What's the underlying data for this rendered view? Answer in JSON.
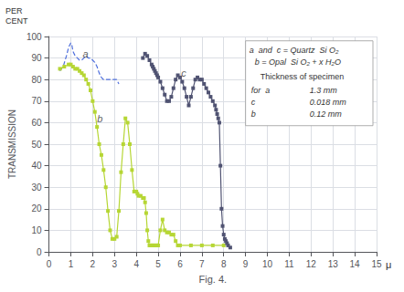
{
  "chart_data": {
    "type": "line",
    "xlabel": "Fig. 4.",
    "ylabel": "TRANSMISSION",
    "ylabel_top": "PER\nCENT",
    "x_unit": "μ",
    "xlim": [
      0,
      15
    ],
    "ylim": [
      0,
      100
    ],
    "xticks": [
      0,
      1,
      2,
      3,
      4,
      5,
      6,
      7,
      8,
      9,
      10,
      11,
      12,
      13,
      14,
      15
    ],
    "yticks": [
      0,
      10,
      20,
      30,
      40,
      50,
      60,
      70,
      80,
      90,
      100
    ],
    "grid": true,
    "series": [
      {
        "line_style": "dashed",
        "marker": "none",
        "x": [
          0.5,
          0.65,
          0.8,
          0.9,
          1.0,
          1.05,
          1.1,
          1.2,
          1.3,
          1.4,
          1.5,
          1.6,
          1.7,
          1.8,
          1.9,
          2.0,
          2.1,
          2.2,
          2.3,
          2.4,
          2.5,
          2.6,
          2.7,
          2.8,
          2.9,
          3.0,
          3.1,
          3.2
        ],
        "values": [
          84,
          86,
          91,
          95,
          97,
          96,
          93,
          91,
          90,
          89,
          89,
          90,
          91,
          90,
          90,
          89,
          88,
          86,
          83,
          81,
          80,
          80,
          80,
          80,
          80,
          80,
          80,
          78
        ]
      },
      {
        "line_style": "solid",
        "marker": "square",
        "x": [
          0.5,
          0.7,
          0.9,
          1.0,
          1.1,
          1.2,
          1.3,
          1.4,
          1.5,
          1.6,
          1.7,
          1.8,
          1.9,
          2.0,
          2.1,
          2.2,
          2.3,
          2.4,
          2.5,
          2.6,
          2.7,
          2.8,
          2.9,
          3.0,
          3.1,
          3.2,
          3.3,
          3.4,
          3.5,
          3.6,
          3.7,
          3.8,
          3.9,
          4.0,
          4.05,
          4.1,
          4.2,
          4.3,
          4.35,
          4.4,
          4.45,
          4.5,
          4.55,
          4.6,
          4.65,
          4.7,
          4.75,
          4.8,
          4.85,
          4.9,
          4.95,
          5.0,
          5.1,
          5.2,
          5.3,
          5.4,
          5.5,
          5.6,
          5.7,
          5.8,
          5.9,
          6.0,
          6.5,
          7.0,
          7.5,
          8.0
        ],
        "values": [
          85,
          86,
          87,
          87,
          86,
          85,
          85,
          84,
          83,
          82,
          80,
          78,
          75,
          70,
          65,
          58,
          50,
          45,
          38,
          30,
          19,
          10,
          6,
          6,
          7,
          19,
          37,
          50,
          62,
          60,
          50,
          38,
          28,
          28,
          27,
          26,
          26,
          25,
          25,
          23,
          18,
          10,
          5,
          3,
          3,
          3,
          3,
          3,
          3,
          3,
          3,
          3,
          10,
          15,
          10,
          9,
          9,
          8,
          8,
          5,
          3,
          3,
          3,
          3,
          3,
          3
        ]
      },
      {
        "line_style": "solid",
        "marker": "square",
        "x": [
          4.3,
          4.4,
          4.5,
          4.6,
          4.7,
          4.75,
          4.8,
          4.85,
          4.9,
          4.95,
          5.0,
          5.1,
          5.2,
          5.3,
          5.4,
          5.5,
          5.6,
          5.7,
          5.8,
          5.9,
          6.0,
          6.1,
          6.2,
          6.3,
          6.4,
          6.5,
          6.6,
          6.7,
          6.8,
          6.9,
          7.0,
          7.1,
          7.2,
          7.3,
          7.4,
          7.5,
          7.6,
          7.65,
          7.7,
          7.75,
          7.8,
          7.85,
          7.9,
          7.95,
          8.0,
          8.05,
          8.1,
          8.15,
          8.2,
          8.3
        ],
        "values": [
          90,
          92,
          91,
          89,
          87,
          86,
          85,
          84,
          83,
          82,
          81,
          79,
          76,
          73,
          70,
          70,
          72,
          76,
          80,
          82,
          81,
          79,
          76,
          72,
          68,
          72,
          76,
          80,
          81,
          80,
          80,
          78,
          76,
          74,
          72,
          70,
          68,
          66,
          64,
          62,
          60,
          40,
          20,
          12,
          8,
          6,
          5,
          4,
          3,
          2
        ]
      }
    ],
    "annotations": [
      {
        "text": "a",
        "x": 1.55,
        "y": 92
      },
      {
        "text": "b",
        "x": 2.2,
        "y": 62
      },
      {
        "text": "c",
        "x": 6.05,
        "y": 83
      }
    ],
    "text_box": {
      "lines": [
        "a  and  c = Quartz  Si O₂",
        "b = Opal  Si O₂ + x H₂O",
        "Thickness of specimen"
      ],
      "rows": [
        [
          "for  a",
          "1.3 mm"
        ],
        [
          "c",
          "0.018 mm"
        ],
        [
          "b",
          "0.12 mm"
        ]
      ]
    }
  }
}
